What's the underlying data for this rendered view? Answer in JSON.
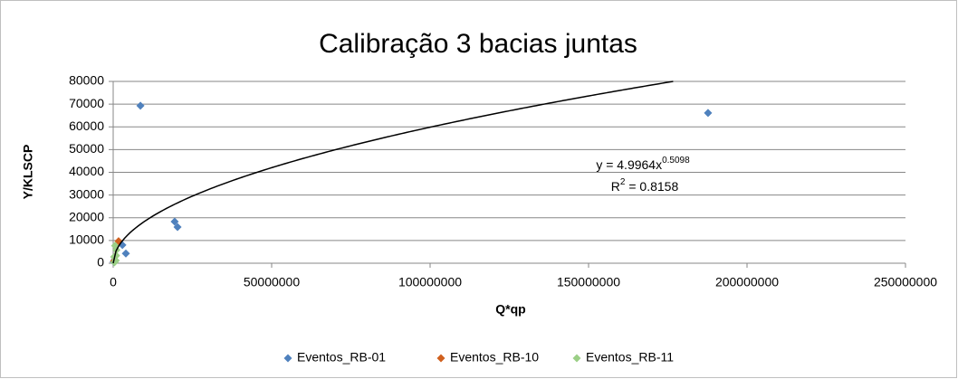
{
  "chart_data": {
    "type": "scatter",
    "title": "Calibração 3 bacias juntas",
    "xlabel": "Q*qp",
    "ylabel": "Y/KLSCP",
    "xlim": [
      0,
      250000000
    ],
    "xticks": [
      0,
      50000000,
      100000000,
      150000000,
      200000000,
      250000000
    ],
    "ylim": [
      0,
      80000
    ],
    "yticks": [
      0,
      10000,
      20000,
      30000,
      40000,
      50000,
      60000,
      70000,
      80000
    ],
    "grid": true,
    "legend": "bottom",
    "series": [
      {
        "name": "Eventos_RB-01",
        "color": "#4f81bd",
        "x": [
          8600000,
          187700000,
          19400000,
          20300000,
          2900000,
          4000000,
          500000,
          200000
        ],
        "values": [
          69300,
          66100,
          18300,
          15900,
          8000,
          4300,
          1500,
          600
        ]
      },
      {
        "name": "Eventos_RB-10",
        "color": "#d0601e",
        "x": [
          1700000,
          600000,
          300000
        ],
        "values": [
          9700,
          3000,
          1000
        ]
      },
      {
        "name": "Eventos_RB-11",
        "color": "#9bcf86",
        "x": [
          600000,
          1000000,
          300000,
          800000,
          400000,
          900000
        ],
        "values": [
          7700,
          5800,
          2800,
          1200,
          400,
          3400
        ]
      }
    ],
    "trendline": {
      "type": "power",
      "a": 4.9964,
      "b": 0.5098,
      "r2": 0.8158,
      "color": "#000000",
      "equation_label": [
        "y = 4.9964x",
        "0.5098"
      ],
      "r2_label": [
        "R",
        "2",
        " = 0.8158"
      ]
    }
  }
}
